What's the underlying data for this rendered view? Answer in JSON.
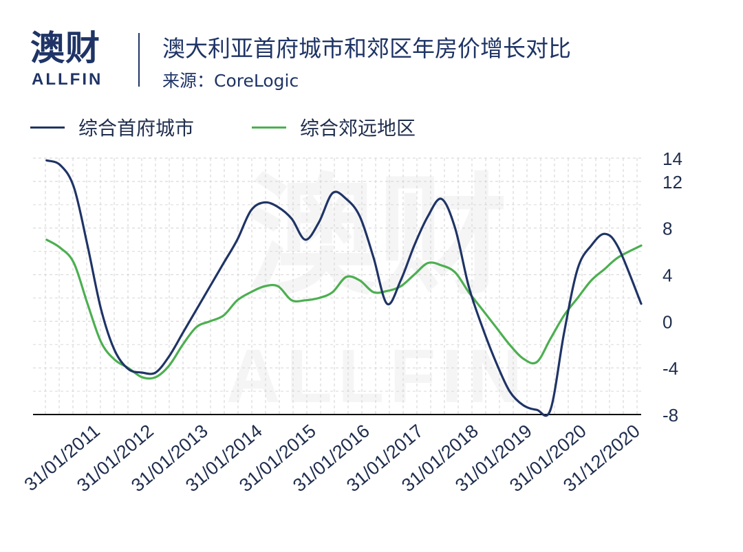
{
  "header": {
    "logo_cn": "澳财",
    "logo_en": "ALLFIN",
    "title": "澳大利亚首府城市和郊区年房价增长对比",
    "source": "来源：CoreLogic"
  },
  "colors": {
    "capital": "#1f3466",
    "regional": "#4caf50",
    "grid": "#d9d9d9",
    "axis": "#000000"
  },
  "chart_data": {
    "type": "line",
    "xlabel": "",
    "ylabel": "",
    "ylim": [
      -8,
      14
    ],
    "yticks": [
      14,
      12,
      8,
      4,
      0,
      -4,
      -8
    ],
    "xticks": [
      "31/01/2011",
      "31/01/2012",
      "31/01/2013",
      "31/01/2014",
      "31/01/2015",
      "31/01/2016",
      "31/01/2017",
      "31/01/2018",
      "31/01/2019",
      "31/01/2020",
      "31/12/2020"
    ],
    "grid": true,
    "legend_position": "top",
    "watermark": "澳财 ALLFIN",
    "series": [
      {
        "name": "综合首府城市",
        "color": "#1f3466",
        "points": [
          [
            "2010-01",
            13.8
          ],
          [
            "2010-04",
            13.4
          ],
          [
            "2010-07",
            11.5
          ],
          [
            "2010-10",
            6.5
          ],
          [
            "2011-01",
            1.0
          ],
          [
            "2011-04",
            -2.5
          ],
          [
            "2011-07",
            -4.1
          ],
          [
            "2011-10",
            -4.4
          ],
          [
            "2012-01",
            -4.4
          ],
          [
            "2012-04",
            -3.0
          ],
          [
            "2012-07",
            -1.0
          ],
          [
            "2012-10",
            1.0
          ],
          [
            "2013-01",
            3.0
          ],
          [
            "2013-04",
            5.0
          ],
          [
            "2013-07",
            7.0
          ],
          [
            "2013-10",
            9.5
          ],
          [
            "2014-01",
            10.2
          ],
          [
            "2014-04",
            9.8
          ],
          [
            "2014-07",
            8.8
          ],
          [
            "2014-10",
            7.0
          ],
          [
            "2015-01",
            8.5
          ],
          [
            "2015-04",
            11.0
          ],
          [
            "2015-07",
            10.5
          ],
          [
            "2015-10",
            9.0
          ],
          [
            "2016-01",
            5.5
          ],
          [
            "2016-04",
            1.5
          ],
          [
            "2016-07",
            3.5
          ],
          [
            "2016-10",
            6.5
          ],
          [
            "2017-01",
            9.0
          ],
          [
            "2017-04",
            10.5
          ],
          [
            "2017-07",
            8.0
          ],
          [
            "2017-10",
            3.0
          ],
          [
            "2018-01",
            -0.5
          ],
          [
            "2018-04",
            -3.5
          ],
          [
            "2018-07",
            -6.0
          ],
          [
            "2018-10",
            -7.2
          ],
          [
            "2019-01",
            -7.6
          ],
          [
            "2019-04",
            -7.6
          ],
          [
            "2019-07",
            -1.0
          ],
          [
            "2019-10",
            4.5
          ],
          [
            "2020-01",
            6.5
          ],
          [
            "2020-04",
            7.5
          ],
          [
            "2020-07",
            6.3
          ],
          [
            "2020-12",
            1.5
          ]
        ]
      },
      {
        "name": "综合郊远地区",
        "color": "#4caf50",
        "points": [
          [
            "2010-01",
            7.0
          ],
          [
            "2010-04",
            6.3
          ],
          [
            "2010-07",
            5.0
          ],
          [
            "2010-10",
            1.5
          ],
          [
            "2011-01",
            -1.8
          ],
          [
            "2011-04",
            -3.3
          ],
          [
            "2011-07",
            -4.0
          ],
          [
            "2011-10",
            -4.8
          ],
          [
            "2012-01",
            -4.8
          ],
          [
            "2012-04",
            -3.8
          ],
          [
            "2012-07",
            -2.0
          ],
          [
            "2012-10",
            -0.5
          ],
          [
            "2013-01",
            0.0
          ],
          [
            "2013-04",
            0.5
          ],
          [
            "2013-07",
            1.8
          ],
          [
            "2013-10",
            2.5
          ],
          [
            "2014-01",
            3.0
          ],
          [
            "2014-04",
            3.0
          ],
          [
            "2014-07",
            1.8
          ],
          [
            "2014-10",
            1.8
          ],
          [
            "2015-01",
            2.0
          ],
          [
            "2015-04",
            2.5
          ],
          [
            "2015-07",
            3.8
          ],
          [
            "2015-10",
            3.5
          ],
          [
            "2016-01",
            2.5
          ],
          [
            "2016-04",
            2.6
          ],
          [
            "2016-07",
            3.0
          ],
          [
            "2016-10",
            4.0
          ],
          [
            "2017-01",
            5.0
          ],
          [
            "2017-04",
            4.8
          ],
          [
            "2017-07",
            4.2
          ],
          [
            "2017-10",
            2.5
          ],
          [
            "2018-01",
            1.0
          ],
          [
            "2018-04",
            -0.5
          ],
          [
            "2018-07",
            -2.0
          ],
          [
            "2018-10",
            -3.2
          ],
          [
            "2019-01",
            -3.5
          ],
          [
            "2019-04",
            -1.5
          ],
          [
            "2019-07",
            0.5
          ],
          [
            "2019-10",
            2.0
          ],
          [
            "2020-01",
            3.5
          ],
          [
            "2020-04",
            4.5
          ],
          [
            "2020-07",
            5.5
          ],
          [
            "2020-12",
            6.5
          ]
        ]
      }
    ]
  }
}
